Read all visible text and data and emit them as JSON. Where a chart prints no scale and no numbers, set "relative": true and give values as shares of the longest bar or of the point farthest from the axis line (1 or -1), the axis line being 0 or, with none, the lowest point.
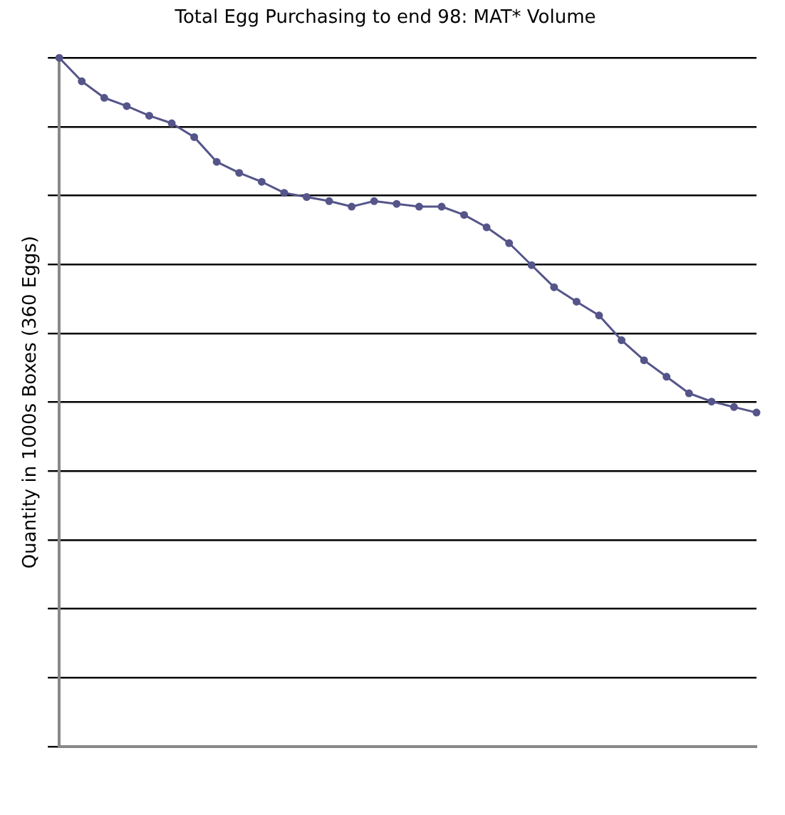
{
  "chart_data": {
    "type": "line",
    "title": "Total Egg Purchasing to end 98: MAT* Volume",
    "ylabel": "Quantity in 1000s Boxes (360 Eggs)",
    "relative": true,
    "grid": "y",
    "marker": "circle",
    "line_style": "solid",
    "categories": [
      null,
      null,
      null,
      null,
      null,
      null,
      null,
      null,
      null,
      null,
      null,
      null,
      null,
      null,
      null,
      null,
      null,
      null,
      null,
      null,
      null,
      null,
      null,
      null,
      null,
      null,
      null,
      null,
      null,
      null,
      null,
      null
    ],
    "series": [
      {
        "color": "#55558a",
        "values": [
          1,
          0.966,
          0.942,
          0.93,
          0.916,
          0.905,
          0.885,
          0.849,
          0.833,
          0.82,
          0.804,
          0.798,
          0.792,
          0.784,
          0.792,
          0.788,
          0.784,
          0.784,
          0.772,
          0.754,
          0.731,
          0.699,
          0.667,
          0.646,
          0.626,
          0.59,
          0.561,
          0.537,
          0.513,
          0.501,
          0.493,
          0.485
        ]
      }
    ]
  }
}
